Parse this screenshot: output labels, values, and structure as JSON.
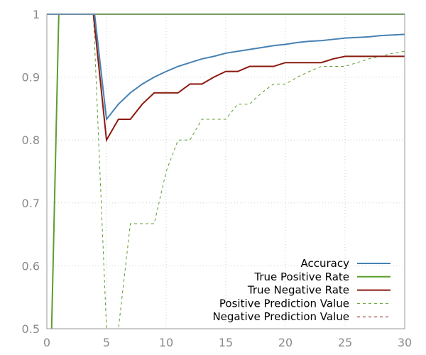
{
  "chart_data": {
    "type": "line",
    "title": "",
    "xlabel": "",
    "ylabel": "",
    "xlim": [
      0,
      30
    ],
    "ylim": [
      0.5,
      1.0
    ],
    "grid": true,
    "legend_position": "bottom-right",
    "x_ticks": [
      0,
      5,
      10,
      15,
      20,
      25,
      30
    ],
    "x_tick_labels": [
      "0",
      "5",
      "10",
      "15",
      "20",
      "25",
      "30"
    ],
    "y_ticks": [
      0.5,
      0.6,
      0.7,
      0.8,
      0.9,
      1.0
    ],
    "y_tick_labels": [
      "0.5",
      "0.6",
      "0.7",
      "0.8",
      "0.9",
      "1"
    ],
    "series": [
      {
        "name": "Accuracy",
        "color": "#4682b4",
        "style": "solid",
        "points": [
          [
            0,
            1
          ],
          [
            1,
            1
          ],
          [
            2,
            1
          ],
          [
            3,
            1
          ],
          [
            4,
            1
          ],
          [
            5,
            0.833
          ],
          [
            6,
            0.857
          ],
          [
            7,
            0.875
          ],
          [
            8,
            0.889
          ],
          [
            9,
            0.9
          ],
          [
            10,
            0.909
          ],
          [
            11,
            0.917
          ],
          [
            12,
            0.923
          ],
          [
            13,
            0.929
          ],
          [
            14,
            0.933
          ],
          [
            15,
            0.938
          ],
          [
            16,
            0.941
          ],
          [
            17,
            0.944
          ],
          [
            18,
            0.947
          ],
          [
            19,
            0.95
          ],
          [
            20,
            0.952
          ],
          [
            21,
            0.955
          ],
          [
            22,
            0.957
          ],
          [
            23,
            0.958
          ],
          [
            24,
            0.96
          ],
          [
            25,
            0.962
          ],
          [
            26,
            0.963
          ],
          [
            27,
            0.964
          ],
          [
            28,
            0.966
          ],
          [
            29,
            0.967
          ],
          [
            30,
            0.968
          ]
        ]
      },
      {
        "name": "True Positive Rate",
        "color": "#5c9e2e",
        "style": "solid",
        "points": [
          [
            0.4,
            0.5
          ],
          [
            1,
            1
          ],
          [
            30,
            1
          ]
        ]
      },
      {
        "name": "True Negative Rate",
        "color": "#8b1a10",
        "style": "solid",
        "points": [
          [
            0,
            1
          ],
          [
            1,
            1
          ],
          [
            2,
            1
          ],
          [
            3,
            1
          ],
          [
            3.9,
            1
          ],
          [
            5,
            0.8
          ],
          [
            6,
            0.833
          ],
          [
            7,
            0.833
          ],
          [
            8,
            0.857
          ],
          [
            9,
            0.875
          ],
          [
            10,
            0.875
          ],
          [
            11,
            0.875
          ],
          [
            12,
            0.889
          ],
          [
            13,
            0.889
          ],
          [
            14,
            0.9
          ],
          [
            15,
            0.909
          ],
          [
            16,
            0.909
          ],
          [
            17,
            0.917
          ],
          [
            18,
            0.917
          ],
          [
            19,
            0.917
          ],
          [
            20,
            0.923
          ],
          [
            21,
            0.923
          ],
          [
            22,
            0.923
          ],
          [
            23,
            0.923
          ],
          [
            24,
            0.929
          ],
          [
            25,
            0.933
          ],
          [
            26,
            0.933
          ],
          [
            27,
            0.933
          ],
          [
            28,
            0.933
          ],
          [
            29,
            0.933
          ],
          [
            30,
            0.933
          ]
        ]
      },
      {
        "name": "Positive Prediction Value",
        "color": "#5c9e2e",
        "style": "dashed",
        "points": [
          [
            0,
            1
          ],
          [
            3.9,
            1
          ],
          [
            5,
            0.5
          ],
          [
            6,
            0.5
          ],
          [
            7,
            0.667
          ],
          [
            8,
            0.667
          ],
          [
            9,
            0.667
          ],
          [
            10,
            0.75
          ],
          [
            11,
            0.8
          ],
          [
            12,
            0.8
          ],
          [
            13,
            0.833
          ],
          [
            14,
            0.833
          ],
          [
            15,
            0.833
          ],
          [
            16,
            0.857
          ],
          [
            17,
            0.857
          ],
          [
            18,
            0.875
          ],
          [
            19,
            0.889
          ],
          [
            20,
            0.889
          ],
          [
            21,
            0.9
          ],
          [
            22,
            0.909
          ],
          [
            23,
            0.917
          ],
          [
            24,
            0.917
          ],
          [
            25,
            0.917
          ],
          [
            26,
            0.923
          ],
          [
            27,
            0.929
          ],
          [
            28,
            0.933
          ],
          [
            29,
            0.938
          ],
          [
            30,
            0.941
          ]
        ]
      },
      {
        "name": "Negative Prediction Value",
        "color": "#8b1a10",
        "style": "dashed",
        "points": [
          [
            0,
            1
          ],
          [
            30,
            1
          ]
        ]
      }
    ]
  }
}
